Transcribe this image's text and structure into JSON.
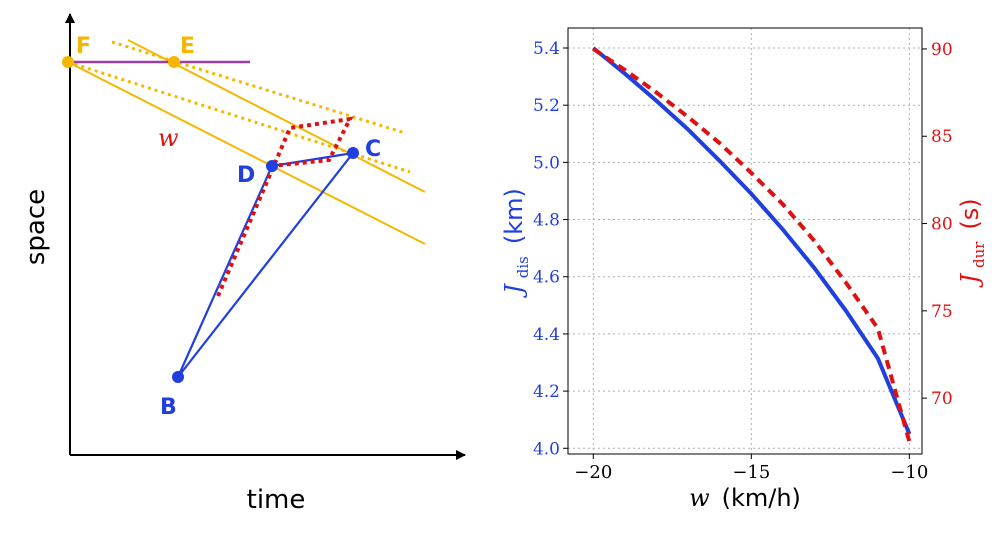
{
  "diagram": {
    "xlabel": "time",
    "ylabel": "space",
    "w_label": "w",
    "points": {
      "F": "F",
      "E": "E",
      "D": "D",
      "C": "C",
      "B": "B"
    },
    "colors": {
      "blue": "#1f3fe0",
      "orange": "#f5b700",
      "purple": "#9b3fa6",
      "red": "#e01010"
    }
  },
  "chart_data": {
    "type": "line",
    "x": [
      -20,
      -19,
      -18,
      -17,
      -16,
      -15,
      -14,
      -13,
      -12,
      -11,
      -10
    ],
    "series": [
      {
        "name": "J_dis (km)",
        "axis": "left",
        "color": "#1f3fe0",
        "style": "solid",
        "values": [
          5.4,
          5.31,
          5.215,
          5.115,
          5.005,
          4.89,
          4.765,
          4.63,
          4.48,
          4.315,
          4.05
        ]
      },
      {
        "name": "J_dur (s)",
        "axis": "right",
        "color": "#e01010",
        "style": "dashed",
        "values": [
          90.0,
          88.8,
          87.5,
          86.1,
          84.6,
          82.9,
          81.1,
          79.0,
          76.6,
          74.0,
          67.5
        ]
      }
    ],
    "xlabel_var": "w",
    "xlabel_unit": "(km/h)",
    "ylabel_left_var": "J",
    "ylabel_left_sub": "dis",
    "ylabel_left_unit": "(km)",
    "ylabel_right_var": "J",
    "ylabel_right_sub": "dur",
    "ylabel_right_unit": "(s)",
    "xlim": [
      -20.8,
      -9.6
    ],
    "ylim_left": [
      3.98,
      5.47
    ],
    "ylim_right": [
      66.8,
      91.2
    ],
    "xticks": [
      -20,
      -15,
      -10
    ],
    "xtick_labels": [
      "−20",
      "−15",
      "−10"
    ],
    "yticks_left": [
      4.0,
      4.2,
      4.4,
      4.6,
      4.8,
      5.0,
      5.2,
      5.4
    ],
    "ytick_labels_left": [
      "4.0",
      "4.2",
      "4.4",
      "4.6",
      "4.8",
      "5.0",
      "5.2",
      "5.4"
    ],
    "yticks_right": [
      70,
      75,
      80,
      85,
      90
    ],
    "ytick_labels_right": [
      "70",
      "75",
      "80",
      "85",
      "90"
    ],
    "grid": true
  }
}
